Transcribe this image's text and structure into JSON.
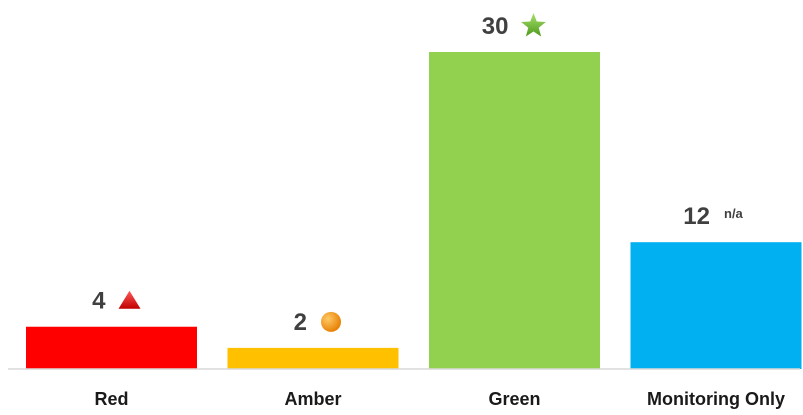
{
  "chart_data": {
    "type": "bar",
    "title": "",
    "xlabel": "",
    "ylabel": "",
    "categories": [
      "Red",
      "Amber",
      "Green",
      "Monitoring Only"
    ],
    "values": [
      4,
      2,
      30,
      12
    ],
    "ylim": [
      0,
      30
    ],
    "grid": false,
    "legend": "none",
    "colors": [
      "#ff0000",
      "#ffc000",
      "#92d050",
      "#00b0f0"
    ],
    "value_labels": [
      "4",
      "2",
      "30",
      "12"
    ],
    "annotations": [
      {
        "category": "Red",
        "icon": "red-triangle-icon",
        "text": ""
      },
      {
        "category": "Amber",
        "icon": "amber-circle-icon",
        "text": ""
      },
      {
        "category": "Green",
        "icon": "green-star-icon",
        "text": ""
      },
      {
        "category": "Monitoring Only",
        "icon": "",
        "text": "n/a"
      }
    ]
  }
}
